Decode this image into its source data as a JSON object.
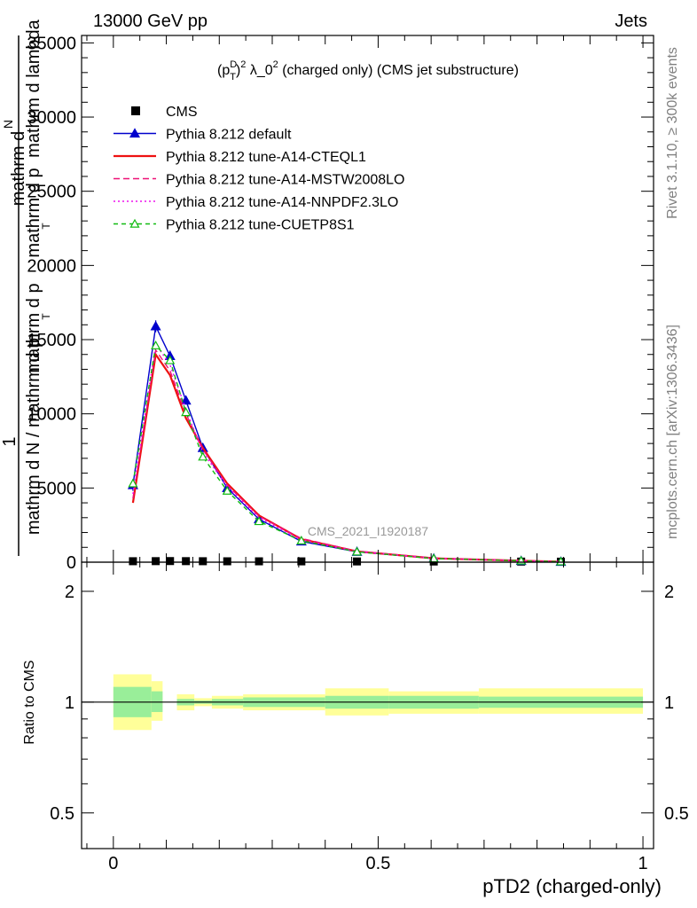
{
  "header": {
    "left": "13000 GeV pp",
    "right": "Jets",
    "side_rivet": "Rivet 3.1.10, ≥ 300k events",
    "side_mcplots": "mcplots.cern.ch [arXiv:1306.3436]",
    "watermark": "CMS_2021_I1920187"
  },
  "chart_data": [
    {
      "panel": "main",
      "type": "line",
      "title_parts": {
        "p": "(p",
        "sup": "D",
        "sub": "T",
        "pow": "2",
        "rest": " λ_0",
        "pow2": "2",
        "tail": " (charged only) (CMS jet substructure)"
      },
      "ylabel_parts": [
        "mathrm d",
        "N",
        "mathrm d p",
        "mathrm d lambda",
        "1",
        "mathrm d N / mathrm d p",
        "mathrm d p",
        "T",
        "T"
      ],
      "xlabel": "pTD2 (charged-only)",
      "xlim": [
        -0.06,
        1.02
      ],
      "ylim": [
        0,
        35500
      ],
      "x_ticks": [
        0,
        0.5,
        1
      ],
      "x_tick_labels": [
        "0",
        "0.5",
        "1"
      ],
      "y_ticks": [
        0,
        5000,
        10000,
        15000,
        20000,
        25000,
        30000,
        35000
      ],
      "y_tick_labels": [
        "0",
        "5000",
        "10000",
        "15000",
        "20000",
        "25000",
        "30000",
        "35000"
      ],
      "x": [
        0.037,
        0.08,
        0.107,
        0.137,
        0.169,
        0.215,
        0.275,
        0.355,
        0.46,
        0.605,
        0.77,
        0.845
      ],
      "series": [
        {
          "name": "CMS",
          "style": "marker-square",
          "color": "#000000",
          "values": [
            35,
            40,
            45,
            40,
            35,
            30,
            28,
            25,
            20,
            15,
            10,
            5
          ]
        },
        {
          "name": "Pythia 8.212 default",
          "style": "line-triangle",
          "color": "#0000cc",
          "values": [
            5200,
            15900,
            13900,
            10900,
            7700,
            5000,
            2900,
            1400,
            700,
            250,
            90,
            30
          ],
          "errors": [
            400,
            400,
            350,
            250,
            150,
            120,
            100,
            60,
            40,
            20,
            10,
            5
          ]
        },
        {
          "name": "Pythia 8.212 tune-A14-CTEQL1",
          "style": "solid",
          "color": "#ee1111",
          "values": [
            4000,
            14000,
            12600,
            9700,
            7700,
            5300,
            3150,
            1550,
            730,
            260,
            95,
            35
          ]
        },
        {
          "name": "Pythia 8.212 tune-A14-MSTW2008LO",
          "style": "dashed",
          "color": "#ee1177",
          "values": [
            4300,
            14300,
            12900,
            10000,
            7600,
            5200,
            3100,
            1600,
            750,
            270,
            100,
            35
          ]
        },
        {
          "name": "Pythia 8.212 tune-A14-NNPDF2.3LO",
          "style": "dotted",
          "color": "#ee11ee",
          "values": [
            4600,
            14700,
            13300,
            10300,
            7400,
            5100,
            3000,
            1500,
            720,
            260,
            95,
            35
          ]
        },
        {
          "name": "Pythia 8.212 tune-CUETP8S1",
          "style": "dashed-open-triangle",
          "color": "#11bb11",
          "values": [
            5300,
            14600,
            13600,
            10100,
            7100,
            4800,
            2750,
            1450,
            700,
            250,
            95,
            35
          ]
        }
      ],
      "legend_placement": "top-left"
    },
    {
      "panel": "ratio",
      "type": "area",
      "ylabel": "Ratio to CMS",
      "ylim": [
        0.4,
        2.4
      ],
      "y_ticks": [
        0.5,
        1,
        2
      ],
      "y_tick_labels": [
        "0.5",
        "1",
        "2"
      ],
      "reference": 1,
      "bins": [
        {
          "x0": 0.0,
          "x1": 0.072,
          "inner": [
            0.91,
            1.1
          ],
          "outer": [
            0.84,
            1.19
          ]
        },
        {
          "x0": 0.072,
          "x1": 0.093,
          "inner": [
            0.94,
            1.07
          ],
          "outer": [
            0.89,
            1.14
          ]
        },
        {
          "x0": 0.12,
          "x1": 0.153,
          "inner": [
            0.98,
            1.02
          ],
          "outer": [
            0.95,
            1.05
          ]
        },
        {
          "x0": 0.153,
          "x1": 0.186,
          "inner": [
            0.99,
            1.01
          ],
          "outer": [
            0.975,
            1.025
          ]
        },
        {
          "x0": 0.186,
          "x1": 0.245,
          "inner": [
            0.98,
            1.02
          ],
          "outer": [
            0.96,
            1.04
          ]
        },
        {
          "x0": 0.245,
          "x1": 0.305,
          "inner": [
            0.97,
            1.03
          ],
          "outer": [
            0.95,
            1.05
          ]
        },
        {
          "x0": 0.305,
          "x1": 0.4,
          "inner": [
            0.97,
            1.03
          ],
          "outer": [
            0.95,
            1.05
          ]
        },
        {
          "x0": 0.4,
          "x1": 0.52,
          "inner": [
            0.96,
            1.04
          ],
          "outer": [
            0.92,
            1.09
          ]
        },
        {
          "x0": 0.52,
          "x1": 0.69,
          "inner": [
            0.96,
            1.04
          ],
          "outer": [
            0.93,
            1.07
          ]
        },
        {
          "x0": 0.69,
          "x1": 1.0,
          "inner": [
            0.965,
            1.035
          ],
          "outer": [
            0.93,
            1.09
          ]
        }
      ]
    }
  ]
}
